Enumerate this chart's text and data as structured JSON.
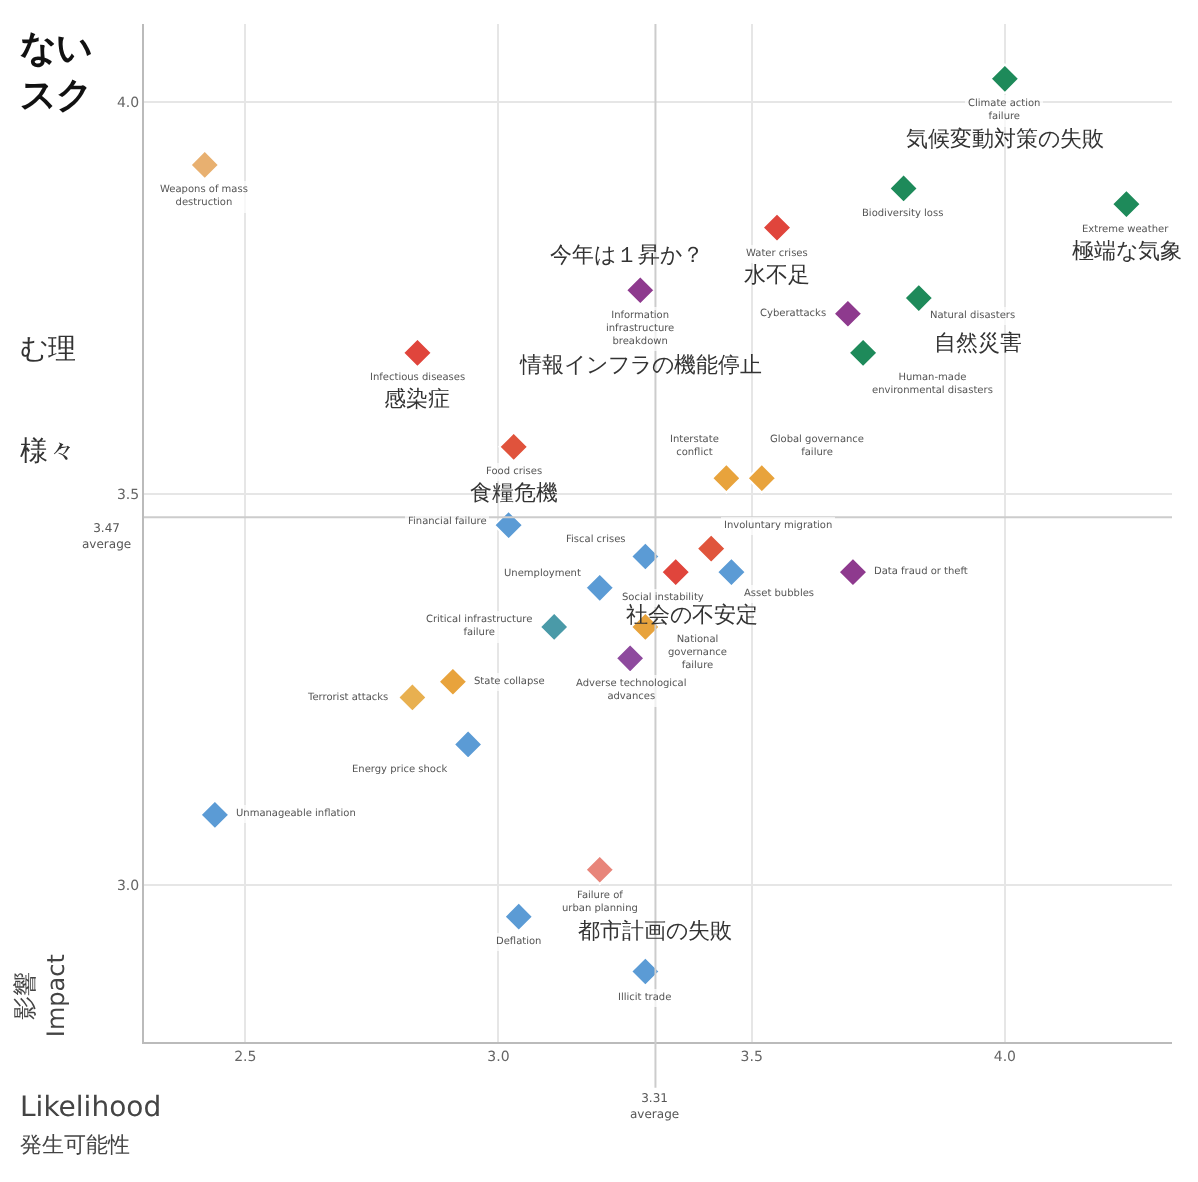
{
  "chart_data": {
    "type": "scatter",
    "title": "ない",
    "subtitle": "スク",
    "xlabel": "Likelihood\n発生可能性",
    "ylabel": "影響\nImpact",
    "x": [
      2.42,
      2.84,
      3.03,
      3.02,
      3.28,
      3.55,
      4.0,
      3.8,
      4.24,
      3.69,
      3.83,
      3.72,
      3.45,
      3.52,
      3.29,
      3.35,
      3.42,
      3.46,
      3.7,
      3.2,
      3.29,
      3.26,
      3.11,
      2.91,
      2.83,
      2.94,
      2.44,
      3.2,
      3.04,
      3.29
    ],
    "series": [
      {
        "values": [
          3.92,
          3.68,
          3.56,
          3.46,
          3.76,
          3.84,
          4.03,
          3.89,
          3.87,
          3.73,
          3.75,
          3.68,
          3.52,
          3.52,
          3.42,
          3.4,
          3.43,
          3.4,
          3.4,
          3.38,
          3.33,
          3.29,
          3.33,
          3.26,
          3.24,
          3.18,
          3.09,
          3.02,
          2.96,
          2.89
        ],
        "colors": [
          "#e8b070",
          "#e0453c",
          "#e0533c",
          "#5b9bd5",
          "#8e3a8e",
          "#e0453c",
          "#1e8a5a",
          "#1e8a5a",
          "#1e8a5a",
          "#8e3a8e",
          "#1e8a5a",
          "#1e8a5a",
          "#e8a33c",
          "#e8a33c",
          "#5b9bd5",
          "#e0453c",
          "#e0553c",
          "#5b9bd5",
          "#8e3a8e",
          "#5b9bd5",
          "#e8a33c",
          "#8e4a9e",
          "#4a9aa8",
          "#e8a33c",
          "#e8b050",
          "#5b9bd5",
          "#5b9bd5",
          "#e8857a",
          "#5b9bd5",
          "#5b9bd5"
        ]
      }
    ],
    "marker": "diamond",
    "grid": true,
    "xlim": [
      2.3,
      4.33
    ],
    "ylim": [
      2.8,
      4.1
    ],
    "xticks": [
      {
        "value": 2.5,
        "label": "2.5"
      },
      {
        "value": 3,
        "label": "3.0"
      },
      {
        "value": 3.5,
        "label": "3.5"
      },
      {
        "value": 4,
        "label": "4.0"
      }
    ],
    "yticks": [
      {
        "value": 3,
        "label": "3.0"
      },
      {
        "value": 3.5,
        "label": "3.5"
      },
      {
        "value": 4,
        "label": "4.0"
      }
    ],
    "ref_lines": [
      {
        "axis": "y",
        "value": 3.47,
        "label": "3.47\naverage"
      },
      {
        "axis": "x",
        "value": 3.31,
        "label": "3.31\naverage"
      }
    ],
    "annotations": [
      {
        "text": "Weapons of mass\ndestruction",
        "x": 2.42,
        "y": 3.92
      },
      {
        "text": "Infectious diseases",
        "x": 2.84,
        "y": 3.68
      },
      {
        "text": "感染症",
        "x": 2.84,
        "y": 3.68
      },
      {
        "text": "Food crises",
        "x": 3.03,
        "y": 3.56
      },
      {
        "text": "食糧危機",
        "x": 3.03,
        "y": 3.56
      },
      {
        "text": "Financial failure",
        "x": 3.02,
        "y": 3.46
      },
      {
        "text": "Information\ninfrastructure\nbreakdown",
        "x": 3.28,
        "y": 3.76
      },
      {
        "text": "情報インフラの機能停止",
        "x": 3.28,
        "y": 3.76
      },
      {
        "text": "Water crises",
        "x": 3.55,
        "y": 3.84
      },
      {
        "text": "水不足",
        "x": 3.55,
        "y": 3.84
      },
      {
        "text": "Climate action\nfailure",
        "x": 4.0,
        "y": 4.03
      },
      {
        "text": "気候変動対策の失敗",
        "x": 4.0,
        "y": 4.03
      },
      {
        "text": "Biodiversity loss",
        "x": 3.8,
        "y": 3.89
      },
      {
        "text": "Extreme weather",
        "x": 4.24,
        "y": 3.87
      },
      {
        "text": "極端な気象",
        "x": 4.24,
        "y": 3.87
      },
      {
        "text": "Cyberattacks",
        "x": 3.69,
        "y": 3.73
      },
      {
        "text": "Natural disasters",
        "x": 3.83,
        "y": 3.75
      },
      {
        "text": "自然災害",
        "x": 3.83,
        "y": 3.75
      },
      {
        "text": "Human-made\nenvironmental disasters",
        "x": 3.72,
        "y": 3.68
      },
      {
        "text": "Interstate\nconflict",
        "x": 3.45,
        "y": 3.52
      },
      {
        "text": "Global governance\nfailure",
        "x": 3.52,
        "y": 3.52
      },
      {
        "text": "Fiscal crises",
        "x": 3.29,
        "y": 3.42
      },
      {
        "text": "Social instability",
        "x": 3.35,
        "y": 3.4
      },
      {
        "text": "社会の不安定",
        "x": 3.35,
        "y": 3.4
      },
      {
        "text": "Involuntary migration",
        "x": 3.42,
        "y": 3.43
      },
      {
        "text": "Asset bubbles",
        "x": 3.46,
        "y": 3.4
      },
      {
        "text": "Data fraud or theft",
        "x": 3.7,
        "y": 3.4
      },
      {
        "text": "Unemployment",
        "x": 3.2,
        "y": 3.38
      },
      {
        "text": "National\ngovernance\nfailure",
        "x": 3.29,
        "y": 3.33
      },
      {
        "text": "Adverse technological\nadvances",
        "x": 3.26,
        "y": 3.29
      },
      {
        "text": "Critical infrastructure\nfailure",
        "x": 3.11,
        "y": 3.33
      },
      {
        "text": "State collapse",
        "x": 2.91,
        "y": 3.26
      },
      {
        "text": "Terrorist attacks",
        "x": 2.83,
        "y": 3.24
      },
      {
        "text": "Energy price shock",
        "x": 2.94,
        "y": 3.18
      },
      {
        "text": "Unmanageable inflation",
        "x": 2.44,
        "y": 3.09
      },
      {
        "text": "Failure of\nurban planning",
        "x": 3.2,
        "y": 3.02
      },
      {
        "text": "都市計画の失敗",
        "x": 3.2,
        "y": 3.02
      },
      {
        "text": "Deflation",
        "x": 3.04,
        "y": 2.96
      },
      {
        "text": "Illicit trade",
        "x": 3.29,
        "y": 2.89
      },
      "今年は１昇か？",
      "む理",
      "様々"
    ]
  }
}
